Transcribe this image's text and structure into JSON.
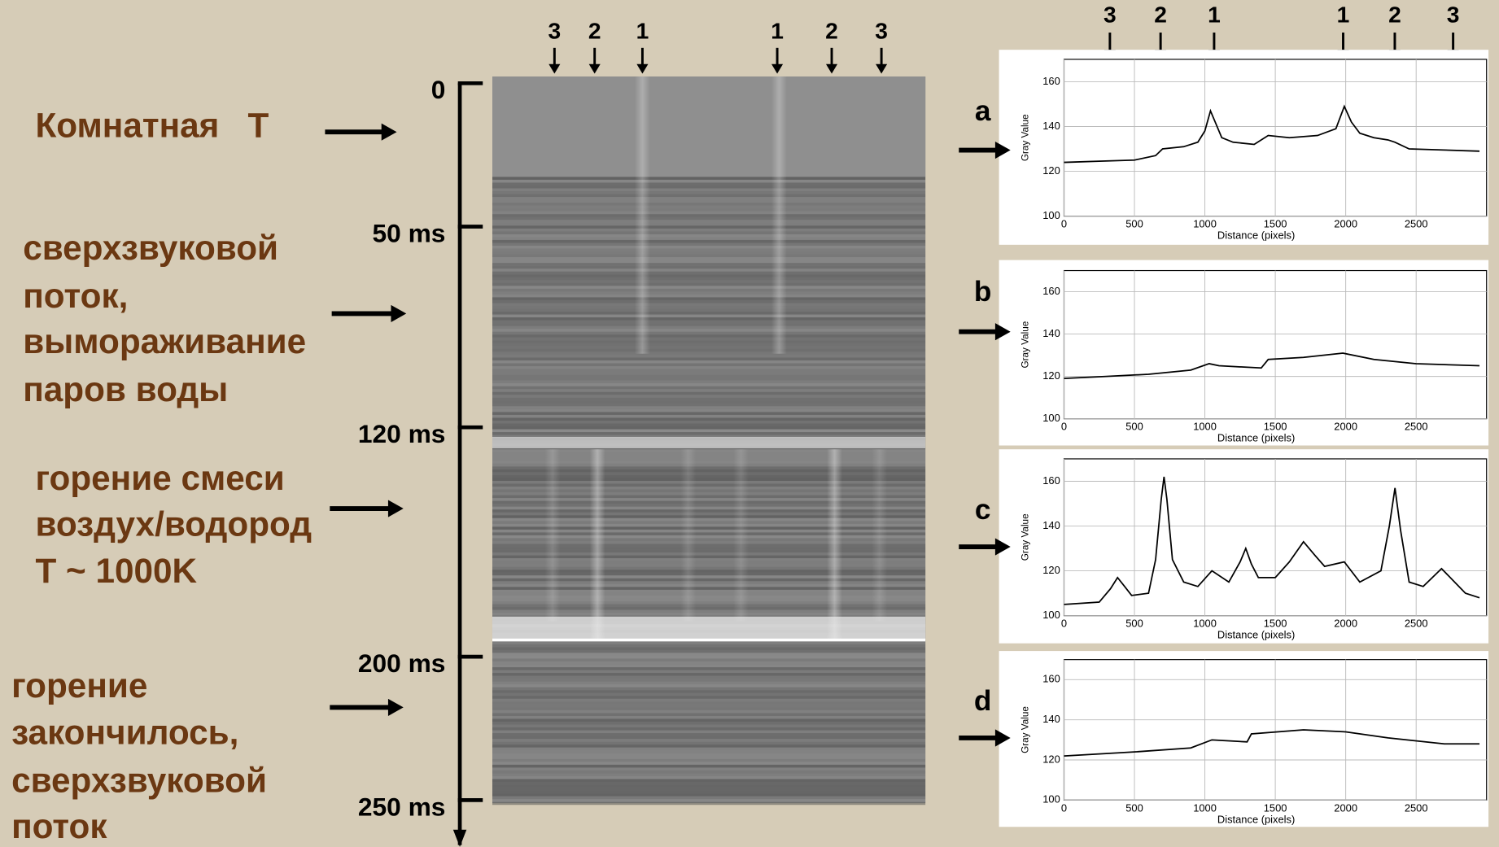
{
  "left_labels": [
    {
      "lines": [
        "Комнатная   T"
      ]
    },
    {
      "lines": [
        "сверхзвуковой",
        "поток,",
        "вымораживание",
        "паров воды"
      ]
    },
    {
      "lines": [
        "горение смеси",
        "воздух/водород",
        "T ~ 1000K"
      ]
    },
    {
      "lines": [
        "горение",
        "закончилось,",
        "сверхзвуковой",
        "поток"
      ]
    }
  ],
  "time_axis": {
    "ylim": [
      0,
      265
    ],
    "ticks": [
      0,
      {
        "value": 50,
        "label": "50 ms"
      },
      {
        "value": 120,
        "label": "120 ms"
      },
      {
        "value": 200,
        "label": "200 ms"
      },
      {
        "value": 250,
        "label": "250 ms"
      }
    ]
  },
  "image_markers": [
    "3",
    "2",
    "1",
    "1",
    "2",
    "3"
  ],
  "profile_markers": [
    "3",
    "2",
    "1",
    "1",
    "2",
    "3"
  ],
  "chart_data": [
    {
      "type": "line",
      "panel_label": "a",
      "x_label": "Distance (pixels)",
      "y_label": "Gray Value",
      "color": "#000000",
      "grid": true,
      "xlim": [
        0,
        3000
      ],
      "ylim": [
        100,
        170
      ],
      "xticks": [
        0,
        500,
        1000,
        1500,
        2000,
        2500
      ],
      "yticks": [
        100,
        120,
        140,
        160
      ],
      "x": [
        0,
        250,
        500,
        650,
        700,
        850,
        950,
        1000,
        1040,
        1080,
        1120,
        1200,
        1350,
        1450,
        1600,
        1800,
        1930,
        1990,
        2040,
        2100,
        2200,
        2300,
        2350,
        2450,
        2700,
        2950
      ],
      "values": [
        124,
        124.5,
        125,
        127,
        130,
        131,
        133,
        138,
        147,
        141,
        135,
        133,
        132,
        136,
        135,
        136,
        139,
        149,
        142,
        137,
        135,
        134,
        133,
        130,
        129.5,
        129
      ]
    },
    {
      "type": "line",
      "panel_label": "b",
      "x_label": "Distance (pixels)",
      "y_label": "Gray Value",
      "color": "#000000",
      "grid": true,
      "xlim": [
        0,
        3000
      ],
      "ylim": [
        100,
        170
      ],
      "xticks": [
        0,
        500,
        1000,
        1500,
        2000,
        2500
      ],
      "yticks": [
        100,
        120,
        140,
        160
      ],
      "x": [
        0,
        300,
        600,
        900,
        1030,
        1100,
        1400,
        1450,
        1700,
        1980,
        2200,
        2500,
        2950
      ],
      "values": [
        119,
        120,
        121,
        123,
        126,
        125,
        124,
        128,
        129,
        131,
        128,
        126,
        125
      ]
    },
    {
      "type": "line",
      "panel_label": "c",
      "x_label": "Distance (pixels)",
      "y_label": "Gray Value",
      "color": "#000000",
      "grid": true,
      "xlim": [
        0,
        3000
      ],
      "ylim": [
        100,
        170
      ],
      "xticks": [
        0,
        500,
        1000,
        1500,
        2000,
        2500
      ],
      "yticks": [
        100,
        120,
        140,
        160
      ],
      "x": [
        0,
        250,
        330,
        380,
        430,
        480,
        600,
        650,
        690,
        710,
        730,
        770,
        850,
        950,
        1050,
        1170,
        1250,
        1290,
        1330,
        1380,
        1500,
        1600,
        1700,
        1780,
        1850,
        1990,
        2100,
        2250,
        2310,
        2350,
        2390,
        2450,
        2550,
        2680,
        2850,
        2950
      ],
      "values": [
        105,
        106,
        112,
        117,
        113,
        109,
        110,
        125,
        152,
        162,
        152,
        125,
        115,
        113,
        120,
        115,
        124,
        130,
        123,
        117,
        117,
        124,
        133,
        127,
        122,
        124,
        115,
        120,
        140,
        157,
        138,
        115,
        113,
        121,
        110,
        108
      ]
    },
    {
      "type": "line",
      "panel_label": "d",
      "x_label": "Distance (pixels)",
      "y_label": "Gray Value",
      "color": "#000000",
      "grid": true,
      "xlim": [
        0,
        3000
      ],
      "ylim": [
        100,
        170
      ],
      "xticks": [
        0,
        500,
        1000,
        1500,
        2000,
        2500
      ],
      "yticks": [
        100,
        120,
        140,
        160
      ],
      "x": [
        0,
        500,
        900,
        1050,
        1300,
        1330,
        1700,
        2000,
        2300,
        2700,
        2950
      ],
      "values": [
        122,
        124,
        126,
        130,
        129,
        133,
        135,
        134,
        131,
        128,
        128
      ]
    }
  ]
}
